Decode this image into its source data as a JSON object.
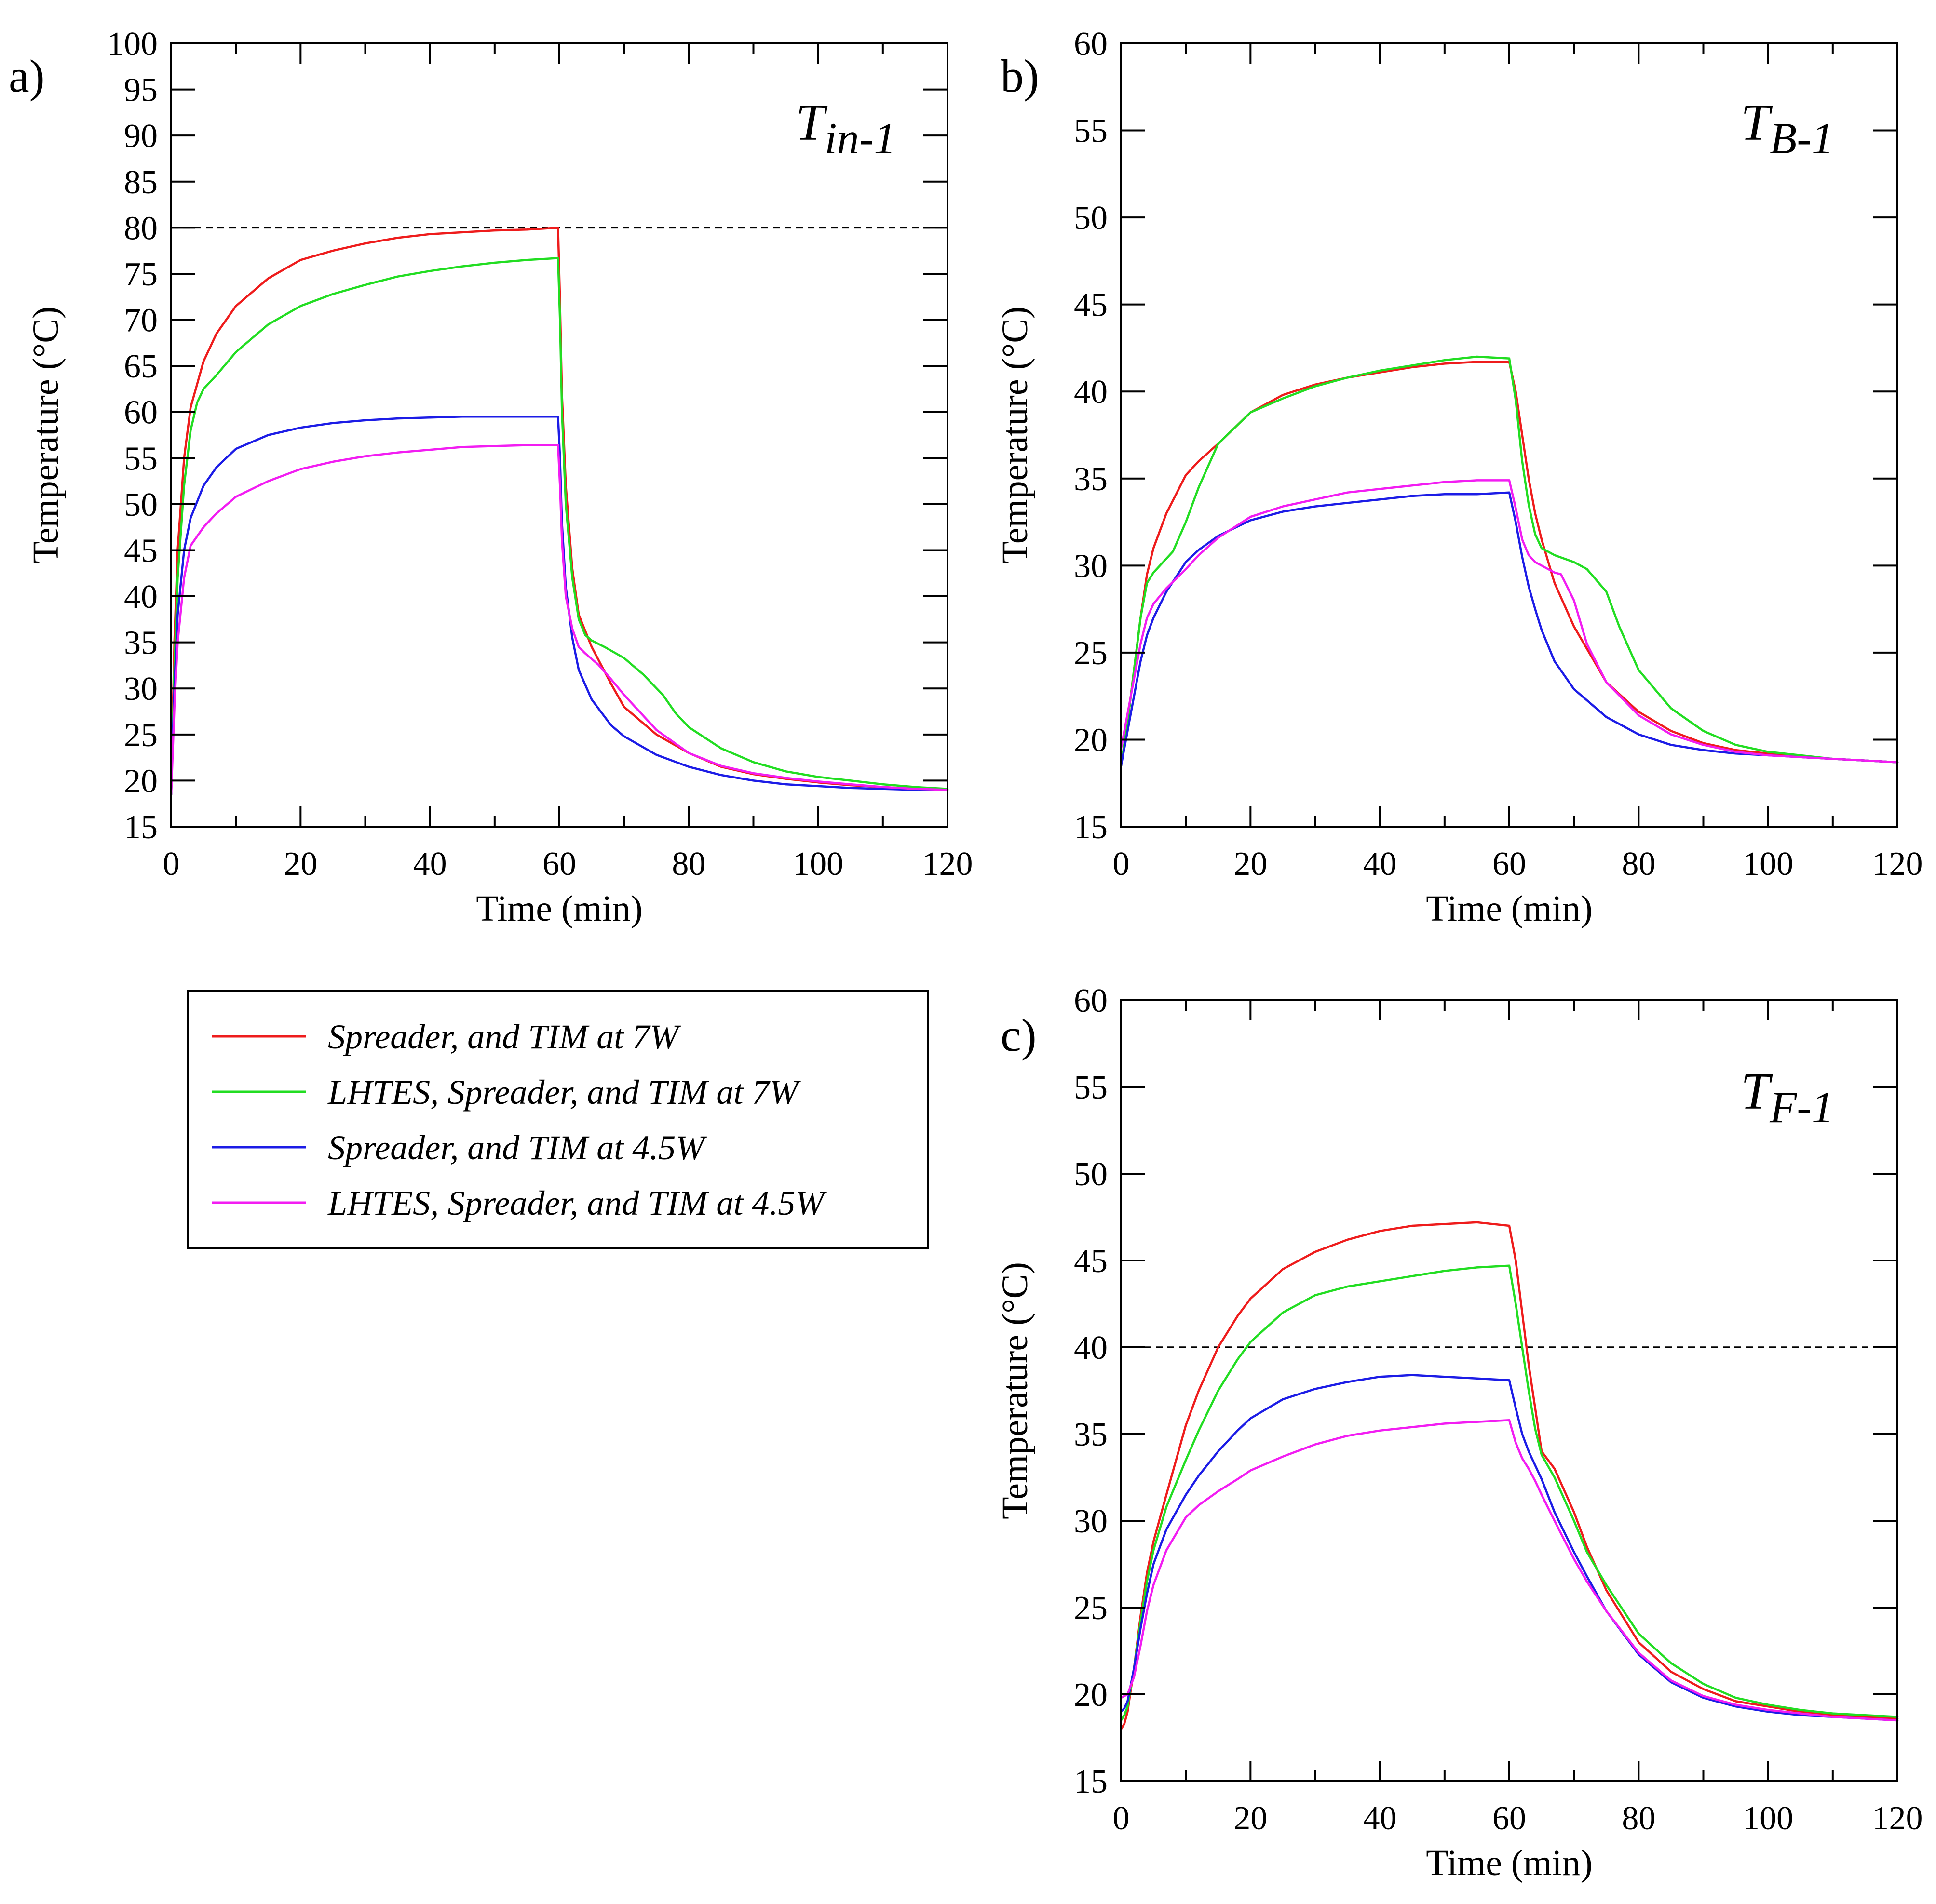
{
  "legend": {
    "entries": [
      {
        "label": "Spreader, and TIM at 7W",
        "color": "#ee1c1c"
      },
      {
        "label": "LHTES, Spreader, and TIM at 7W",
        "color": "#22dd22"
      },
      {
        "label": "Spreader, and TIM at 4.5W",
        "color": "#1c1ce6"
      },
      {
        "label": "LHTES, Spreader, and TIM at 4.5W",
        "color": "#f21df2"
      }
    ]
  },
  "chart_data": [
    {
      "id": "a",
      "type": "line",
      "panel_label": "a)",
      "title_main": "T",
      "title_sub": "in-1",
      "xlabel": "Time (min)",
      "ylabel": "Temperature (°C)",
      "xlim": [
        0,
        120
      ],
      "ylim": [
        15,
        100
      ],
      "xticks": [
        0,
        20,
        40,
        60,
        80,
        100,
        120
      ],
      "yticks": [
        15,
        20,
        25,
        30,
        35,
        40,
        45,
        50,
        55,
        60,
        65,
        70,
        75,
        80,
        85,
        90,
        95,
        100
      ],
      "reference_line": 80,
      "series": [
        {
          "name": "Spreader, and TIM at 7W",
          "color": "#ee1c1c",
          "x": [
            0,
            0.5,
            1,
            2,
            3,
            5,
            7,
            10,
            15,
            20,
            25,
            30,
            35,
            40,
            45,
            50,
            55,
            59.8,
            60.1,
            60.4,
            61,
            62,
            63,
            65,
            68,
            70,
            75,
            80,
            85,
            90,
            95,
            100,
            105,
            110,
            115,
            120
          ],
          "y": [
            18.5,
            35,
            45,
            55,
            60.5,
            65.5,
            68.5,
            71.5,
            74.5,
            76.5,
            77.5,
            78.3,
            78.9,
            79.3,
            79.5,
            79.7,
            79.8,
            80,
            72,
            62,
            52,
            43,
            38,
            34.5,
            30.5,
            28,
            25,
            23,
            21.5,
            20.7,
            20.2,
            19.8,
            19.5,
            19.3,
            19.1,
            19
          ]
        },
        {
          "name": "LHTES, Spreader, and TIM at 7W",
          "color": "#22dd22",
          "x": [
            0,
            0.5,
            1,
            2,
            3,
            4,
            5,
            7,
            10,
            15,
            20,
            25,
            30,
            35,
            40,
            45,
            50,
            55,
            59.8,
            60.1,
            60.4,
            61,
            62,
            63,
            64,
            65,
            67,
            70,
            73,
            76,
            78,
            80,
            85,
            90,
            95,
            100,
            105,
            110,
            115,
            120
          ],
          "y": [
            18.5,
            32,
            42,
            52,
            58,
            61,
            62.5,
            64,
            66.5,
            69.5,
            71.5,
            72.8,
            73.8,
            74.7,
            75.3,
            75.8,
            76.2,
            76.5,
            76.7,
            70,
            60,
            50,
            42,
            37.5,
            35.8,
            35.2,
            34.5,
            33.3,
            31.5,
            29.3,
            27.3,
            25.8,
            23.5,
            22,
            21,
            20.4,
            20,
            19.6,
            19.3,
            19.1
          ]
        },
        {
          "name": "Spreader, and TIM at 4.5W",
          "color": "#1c1ce6",
          "x": [
            0,
            0.5,
            1,
            2,
            3,
            5,
            7,
            10,
            15,
            20,
            25,
            30,
            35,
            40,
            45,
            50,
            55,
            59.8,
            60.1,
            60.4,
            61,
            62,
            63,
            65,
            68,
            70,
            75,
            80,
            85,
            90,
            95,
            100,
            105,
            110,
            115,
            120
          ],
          "y": [
            18.5,
            30,
            38,
            45,
            48.5,
            52,
            54,
            56,
            57.5,
            58.3,
            58.8,
            59.1,
            59.3,
            59.4,
            59.5,
            59.5,
            59.5,
            59.5,
            55,
            48,
            41,
            35.5,
            32,
            28.8,
            26,
            24.8,
            22.8,
            21.5,
            20.6,
            20,
            19.6,
            19.4,
            19.2,
            19.1,
            19,
            19
          ]
        },
        {
          "name": "LHTES, Spreader, and TIM at 4.5W",
          "color": "#f21df2",
          "x": [
            0,
            0.5,
            1,
            2,
            3,
            5,
            7,
            10,
            15,
            20,
            25,
            30,
            35,
            40,
            45,
            50,
            55,
            59.8,
            60.1,
            60.4,
            61,
            62,
            63,
            64,
            66,
            68,
            70,
            75,
            80,
            85,
            90,
            95,
            100,
            105,
            110,
            115,
            120
          ],
          "y": [
            18.5,
            28,
            35,
            42,
            45.5,
            47.5,
            49,
            50.8,
            52.5,
            53.8,
            54.6,
            55.2,
            55.6,
            55.9,
            56.2,
            56.3,
            56.4,
            56.4,
            52,
            46,
            40,
            36.5,
            34.5,
            33.8,
            32.6,
            31,
            29.3,
            25.5,
            23,
            21.6,
            20.8,
            20.3,
            19.9,
            19.6,
            19.3,
            19.1,
            19
          ]
        }
      ]
    },
    {
      "id": "b",
      "type": "line",
      "panel_label": "b)",
      "title_main": "T",
      "title_sub": "B-1",
      "xlabel": "Time (min)",
      "ylabel": "Temperature (°C)",
      "xlim": [
        0,
        120
      ],
      "ylim": [
        15,
        60
      ],
      "xticks": [
        0,
        20,
        40,
        60,
        80,
        100,
        120
      ],
      "yticks": [
        15,
        20,
        25,
        30,
        35,
        40,
        45,
        50,
        55,
        60
      ],
      "reference_line": null,
      "series": [
        {
          "name": "Spreader, and TIM at 7W",
          "color": "#ee1c1c",
          "x": [
            0,
            1,
            2,
            3,
            4,
            5,
            7,
            10,
            12,
            15,
            20,
            25,
            30,
            35,
            40,
            45,
            50,
            55,
            60,
            61,
            62,
            63,
            64,
            65,
            67,
            70,
            75,
            80,
            85,
            90,
            95,
            100,
            105,
            110,
            115,
            120
          ],
          "y": [
            18.5,
            21,
            24,
            27,
            29.5,
            31,
            33,
            35.2,
            36,
            37,
            38.8,
            39.8,
            40.4,
            40.8,
            41.1,
            41.4,
            41.6,
            41.7,
            41.7,
            40,
            37.5,
            35,
            33,
            31.5,
            29,
            26.5,
            23.3,
            21.6,
            20.5,
            19.8,
            19.4,
            19.2,
            19,
            18.9,
            18.8,
            18.7
          ]
        },
        {
          "name": "LHTES, Spreader, and TIM at 7W",
          "color": "#22dd22",
          "x": [
            0,
            1,
            2,
            3,
            4,
            5,
            6,
            8,
            10,
            12,
            15,
            20,
            25,
            30,
            35,
            40,
            45,
            50,
            55,
            60,
            61,
            62,
            63,
            64,
            65,
            67,
            70,
            72,
            75,
            77,
            80,
            85,
            90,
            95,
            100,
            105,
            110,
            115,
            120
          ],
          "y": [
            18.5,
            21,
            24,
            27,
            29,
            29.6,
            30,
            30.8,
            32.5,
            34.5,
            37,
            38.8,
            39.6,
            40.3,
            40.8,
            41.2,
            41.5,
            41.8,
            42,
            41.9,
            39.5,
            36,
            33.5,
            31.8,
            31,
            30.6,
            30.2,
            29.8,
            28.5,
            26.5,
            24,
            21.8,
            20.5,
            19.7,
            19.3,
            19.1,
            18.9,
            18.8,
            18.7
          ]
        },
        {
          "name": "Spreader, and TIM at 4.5W",
          "color": "#1c1ce6",
          "x": [
            0,
            1,
            2,
            3,
            4,
            5,
            7,
            10,
            12,
            15,
            20,
            25,
            30,
            35,
            40,
            45,
            50,
            55,
            60,
            61,
            62,
            63,
            64,
            65,
            67,
            70,
            75,
            80,
            85,
            90,
            95,
            100,
            105,
            110,
            115,
            120
          ],
          "y": [
            18.5,
            20.5,
            22.5,
            24.5,
            26,
            27,
            28.5,
            30.2,
            30.9,
            31.7,
            32.6,
            33.1,
            33.4,
            33.6,
            33.8,
            34,
            34.1,
            34.1,
            34.2,
            32.5,
            30.5,
            28.8,
            27.5,
            26.3,
            24.5,
            22.9,
            21.3,
            20.3,
            19.7,
            19.4,
            19.2,
            19.1,
            19,
            18.9,
            18.8,
            18.7
          ]
        },
        {
          "name": "LHTES, Spreader, and TIM at 4.5W",
          "color": "#f21df2",
          "x": [
            0,
            1,
            2,
            3,
            4,
            5,
            7,
            10,
            12,
            15,
            20,
            25,
            30,
            35,
            40,
            45,
            50,
            55,
            60,
            61,
            62,
            63,
            64,
            65,
            67,
            68,
            70,
            72,
            75,
            80,
            85,
            90,
            95,
            100,
            105,
            110,
            115,
            120
          ],
          "y": [
            19.5,
            21.5,
            23.5,
            25.5,
            27,
            27.8,
            28.7,
            29.8,
            30.6,
            31.6,
            32.8,
            33.4,
            33.8,
            34.2,
            34.4,
            34.6,
            34.8,
            34.9,
            34.9,
            33.3,
            31.5,
            30.6,
            30.2,
            30,
            29.6,
            29.5,
            28,
            25.5,
            23.3,
            21.4,
            20.3,
            19.7,
            19.3,
            19.1,
            19,
            18.9,
            18.8,
            18.7
          ]
        }
      ]
    },
    {
      "id": "c",
      "type": "line",
      "panel_label": "c)",
      "title_main": "T",
      "title_sub": "F-1",
      "xlabel": "Time (min)",
      "ylabel": "Temperature (°C)",
      "xlim": [
        0,
        120
      ],
      "ylim": [
        15,
        60
      ],
      "xticks": [
        0,
        20,
        40,
        60,
        80,
        100,
        120
      ],
      "yticks": [
        15,
        20,
        25,
        30,
        35,
        40,
        45,
        50,
        55,
        60
      ],
      "reference_line": 40,
      "series": [
        {
          "name": "Spreader, and TIM at 7W",
          "color": "#ee1c1c",
          "x": [
            0,
            0.5,
            1,
            2,
            3,
            4,
            5,
            7,
            10,
            12,
            15,
            18,
            20,
            25,
            30,
            35,
            40,
            45,
            50,
            55,
            60,
            61,
            62,
            63,
            64,
            65,
            67,
            70,
            72,
            75,
            80,
            85,
            90,
            95,
            100,
            105,
            110,
            115,
            120
          ],
          "y": [
            18,
            18.3,
            19,
            21.5,
            24.5,
            27,
            28.8,
            31.5,
            35.5,
            37.5,
            40,
            41.8,
            42.8,
            44.5,
            45.5,
            46.2,
            46.7,
            47,
            47.1,
            47.2,
            47,
            45,
            42,
            39,
            36.5,
            34,
            33,
            30.5,
            28.5,
            26,
            23,
            21.3,
            20.3,
            19.6,
            19.3,
            19,
            18.8,
            18.7,
            18.6
          ]
        },
        {
          "name": "LHTES, Spreader, and TIM at 7W",
          "color": "#22dd22",
          "x": [
            0,
            0.5,
            1,
            2,
            3,
            4,
            5,
            7,
            10,
            12,
            15,
            18,
            20,
            25,
            30,
            35,
            40,
            45,
            50,
            55,
            60,
            61,
            62,
            63,
            64,
            65,
            67,
            70,
            72,
            75,
            80,
            85,
            90,
            95,
            100,
            105,
            110,
            115,
            120
          ],
          "y": [
            18.5,
            18.8,
            19.3,
            21.5,
            24.2,
            26.5,
            28.3,
            30.8,
            33.5,
            35.2,
            37.5,
            39.3,
            40.3,
            42,
            43,
            43.5,
            43.8,
            44.1,
            44.4,
            44.6,
            44.7,
            42.5,
            40,
            37.5,
            35.3,
            33.8,
            32.5,
            30,
            28.2,
            26.3,
            23.5,
            21.8,
            20.6,
            19.8,
            19.4,
            19.1,
            18.9,
            18.8,
            18.7
          ]
        },
        {
          "name": "Spreader, and TIM at 4.5W",
          "color": "#1c1ce6",
          "x": [
            0,
            0.5,
            1,
            2,
            3,
            4,
            5,
            7,
            10,
            12,
            15,
            18,
            20,
            25,
            30,
            35,
            40,
            45,
            50,
            55,
            60,
            61,
            62,
            63,
            64,
            65,
            67,
            70,
            72,
            75,
            80,
            85,
            90,
            95,
            100,
            105,
            110,
            115,
            120
          ],
          "y": [
            19,
            19.2,
            19.6,
            21.5,
            23.8,
            25.8,
            27.5,
            29.5,
            31.5,
            32.6,
            34,
            35.2,
            35.9,
            37,
            37.6,
            38,
            38.3,
            38.4,
            38.3,
            38.2,
            38.1,
            36.5,
            35,
            34,
            33.2,
            32.4,
            30.5,
            28.2,
            26.8,
            24.8,
            22.3,
            20.7,
            19.8,
            19.3,
            19,
            18.8,
            18.7,
            18.6,
            18.5
          ]
        },
        {
          "name": "LHTES, Spreader, and TIM at 4.5W",
          "color": "#f21df2",
          "x": [
            0,
            0.5,
            1,
            2,
            3,
            4,
            5,
            7,
            10,
            12,
            15,
            18,
            20,
            25,
            30,
            35,
            40,
            45,
            50,
            55,
            60,
            61,
            62,
            63,
            64,
            65,
            67,
            70,
            72,
            75,
            80,
            85,
            90,
            95,
            100,
            105,
            110,
            115,
            120
          ],
          "y": [
            19.8,
            19.9,
            20,
            21,
            22.8,
            24.8,
            26.3,
            28.3,
            30.2,
            30.9,
            31.7,
            32.4,
            32.9,
            33.7,
            34.4,
            34.9,
            35.2,
            35.4,
            35.6,
            35.7,
            35.8,
            34.5,
            33.6,
            33,
            32.3,
            31.5,
            30,
            27.8,
            26.5,
            24.8,
            22.4,
            20.8,
            19.9,
            19.4,
            19.1,
            18.9,
            18.7,
            18.6,
            18.5
          ]
        }
      ]
    }
  ]
}
